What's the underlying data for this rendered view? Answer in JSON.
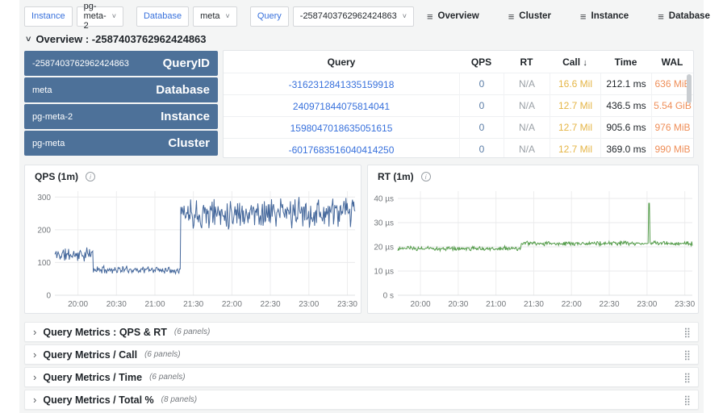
{
  "topbar": {
    "filters": [
      {
        "label": "Instance",
        "value": "pg-meta-2"
      },
      {
        "label": "Database",
        "value": "meta"
      },
      {
        "label": "Query",
        "value": "-2587403762962424863"
      }
    ],
    "nav": [
      {
        "label": "Overview"
      },
      {
        "label": "Cluster"
      },
      {
        "label": "Instance"
      },
      {
        "label": "Database"
      }
    ]
  },
  "section": {
    "title": "Overview : -2587403762962424863"
  },
  "stat_cards": [
    {
      "value": "-2587403762962424863",
      "label": "QueryID"
    },
    {
      "value": "meta",
      "label": "Database"
    },
    {
      "value": "pg-meta-2",
      "label": "Instance"
    },
    {
      "value": "pg-meta",
      "label": "Cluster"
    }
  ],
  "table": {
    "headers": [
      "Query",
      "QPS",
      "RT",
      "Call",
      "Time",
      "WAL"
    ],
    "sort_arrow": "↓",
    "rows": [
      {
        "query": "-3162312841335159918",
        "qps": "0",
        "rt": "N/A",
        "call": "16.6 Mil",
        "time": "212.1 ms",
        "wal": "636 MiB"
      },
      {
        "query": "240971844075814041",
        "qps": "0",
        "rt": "N/A",
        "call": "12.7 Mil",
        "time": "436.5 ms",
        "wal": "5.54 GiB"
      },
      {
        "query": "1598047018635051615",
        "qps": "0",
        "rt": "N/A",
        "call": "12.7 Mil",
        "time": "905.6 ms",
        "wal": "976 MiB"
      },
      {
        "query": "-6017683516040414250",
        "qps": "0",
        "rt": "N/A",
        "call": "12.7 Mil",
        "time": "369.0 ms",
        "wal": "990 MiB"
      }
    ]
  },
  "chart_data": [
    {
      "type": "line",
      "title": "QPS (1m)",
      "color": "#44679b",
      "seed": 11,
      "x_range": [
        19.7,
        23.6
      ],
      "y_range": [
        0,
        318
      ],
      "clamp": [
        0,
        300
      ],
      "x_ticks": [
        {
          "v": 20,
          "label": "20:00"
        },
        {
          "v": 20.5,
          "label": "20:30"
        },
        {
          "v": 21,
          "label": "21:00"
        },
        {
          "v": 21.5,
          "label": "21:30"
        },
        {
          "v": 22,
          "label": "22:00"
        },
        {
          "v": 22.5,
          "label": "22:30"
        },
        {
          "v": 23,
          "label": "23:00"
        },
        {
          "v": 23.5,
          "label": "23:30"
        }
      ],
      "y_ticks": [
        {
          "v": 0,
          "label": "0"
        },
        {
          "v": 100,
          "label": "100"
        },
        {
          "v": 200,
          "label": "200"
        },
        {
          "v": 300,
          "label": "300"
        }
      ],
      "phases": [
        {
          "from": 19.7,
          "to": 20.2,
          "mean": 124,
          "amp": 26
        },
        {
          "from": 20.2,
          "to": 21.33,
          "mean": 78,
          "amp": 13
        },
        {
          "from": 21.33,
          "to": 23.6,
          "mean": 252,
          "amp": 55
        }
      ],
      "spikes": []
    },
    {
      "type": "line",
      "title": "RT (1m)",
      "color": "#539b49",
      "seed": 23,
      "x_range": [
        19.7,
        23.6
      ],
      "y_range": [
        0,
        43
      ],
      "clamp": [
        0,
        40
      ],
      "x_ticks": [
        {
          "v": 20,
          "label": "20:00"
        },
        {
          "v": 20.5,
          "label": "20:30"
        },
        {
          "v": 21,
          "label": "21:00"
        },
        {
          "v": 21.5,
          "label": "21:30"
        },
        {
          "v": 22,
          "label": "22:00"
        },
        {
          "v": 22.5,
          "label": "22:30"
        },
        {
          "v": 23,
          "label": "23:00"
        },
        {
          "v": 23.5,
          "label": "23:30"
        }
      ],
      "y_ticks": [
        {
          "v": 0,
          "label": "0 s"
        },
        {
          "v": 10,
          "label": "10 µs"
        },
        {
          "v": 20,
          "label": "20 µs"
        },
        {
          "v": 30,
          "label": "30 µs"
        },
        {
          "v": 40,
          "label": "40 µs"
        }
      ],
      "phases": [
        {
          "from": 19.7,
          "to": 21.33,
          "mean": 19.3,
          "amp": 1.1
        },
        {
          "from": 21.33,
          "to": 23.6,
          "mean": 21.4,
          "amp": 1.0
        }
      ],
      "spikes": [
        {
          "t": 23.03,
          "v": 38
        }
      ]
    }
  ],
  "sections": [
    {
      "title": "Query Metrics : QPS & RT",
      "note": "(6 panels)"
    },
    {
      "title": "Query Metrics / Call",
      "note": "(6 panels)"
    },
    {
      "title": "Query Metrics / Time",
      "note": "(6 panels)"
    },
    {
      "title": "Query Metrics / Total %",
      "note": "(8 panels)"
    }
  ],
  "icons": {
    "burger": "≡",
    "caret_down": "˅",
    "chevron_down": "˅",
    "chevron_right": "›",
    "info": "i",
    "drag_handle": "⣿"
  },
  "colors": {
    "accent_blue": "#3871dc",
    "card_blue": "#4d7199",
    "qps_line": "#44679b",
    "rt_line": "#539b49",
    "call_amber": "#e5b545",
    "wal_orange": "#ef8e58",
    "na_gray": "#9aa0a6",
    "canvas_bg": "#f4f5f5"
  }
}
